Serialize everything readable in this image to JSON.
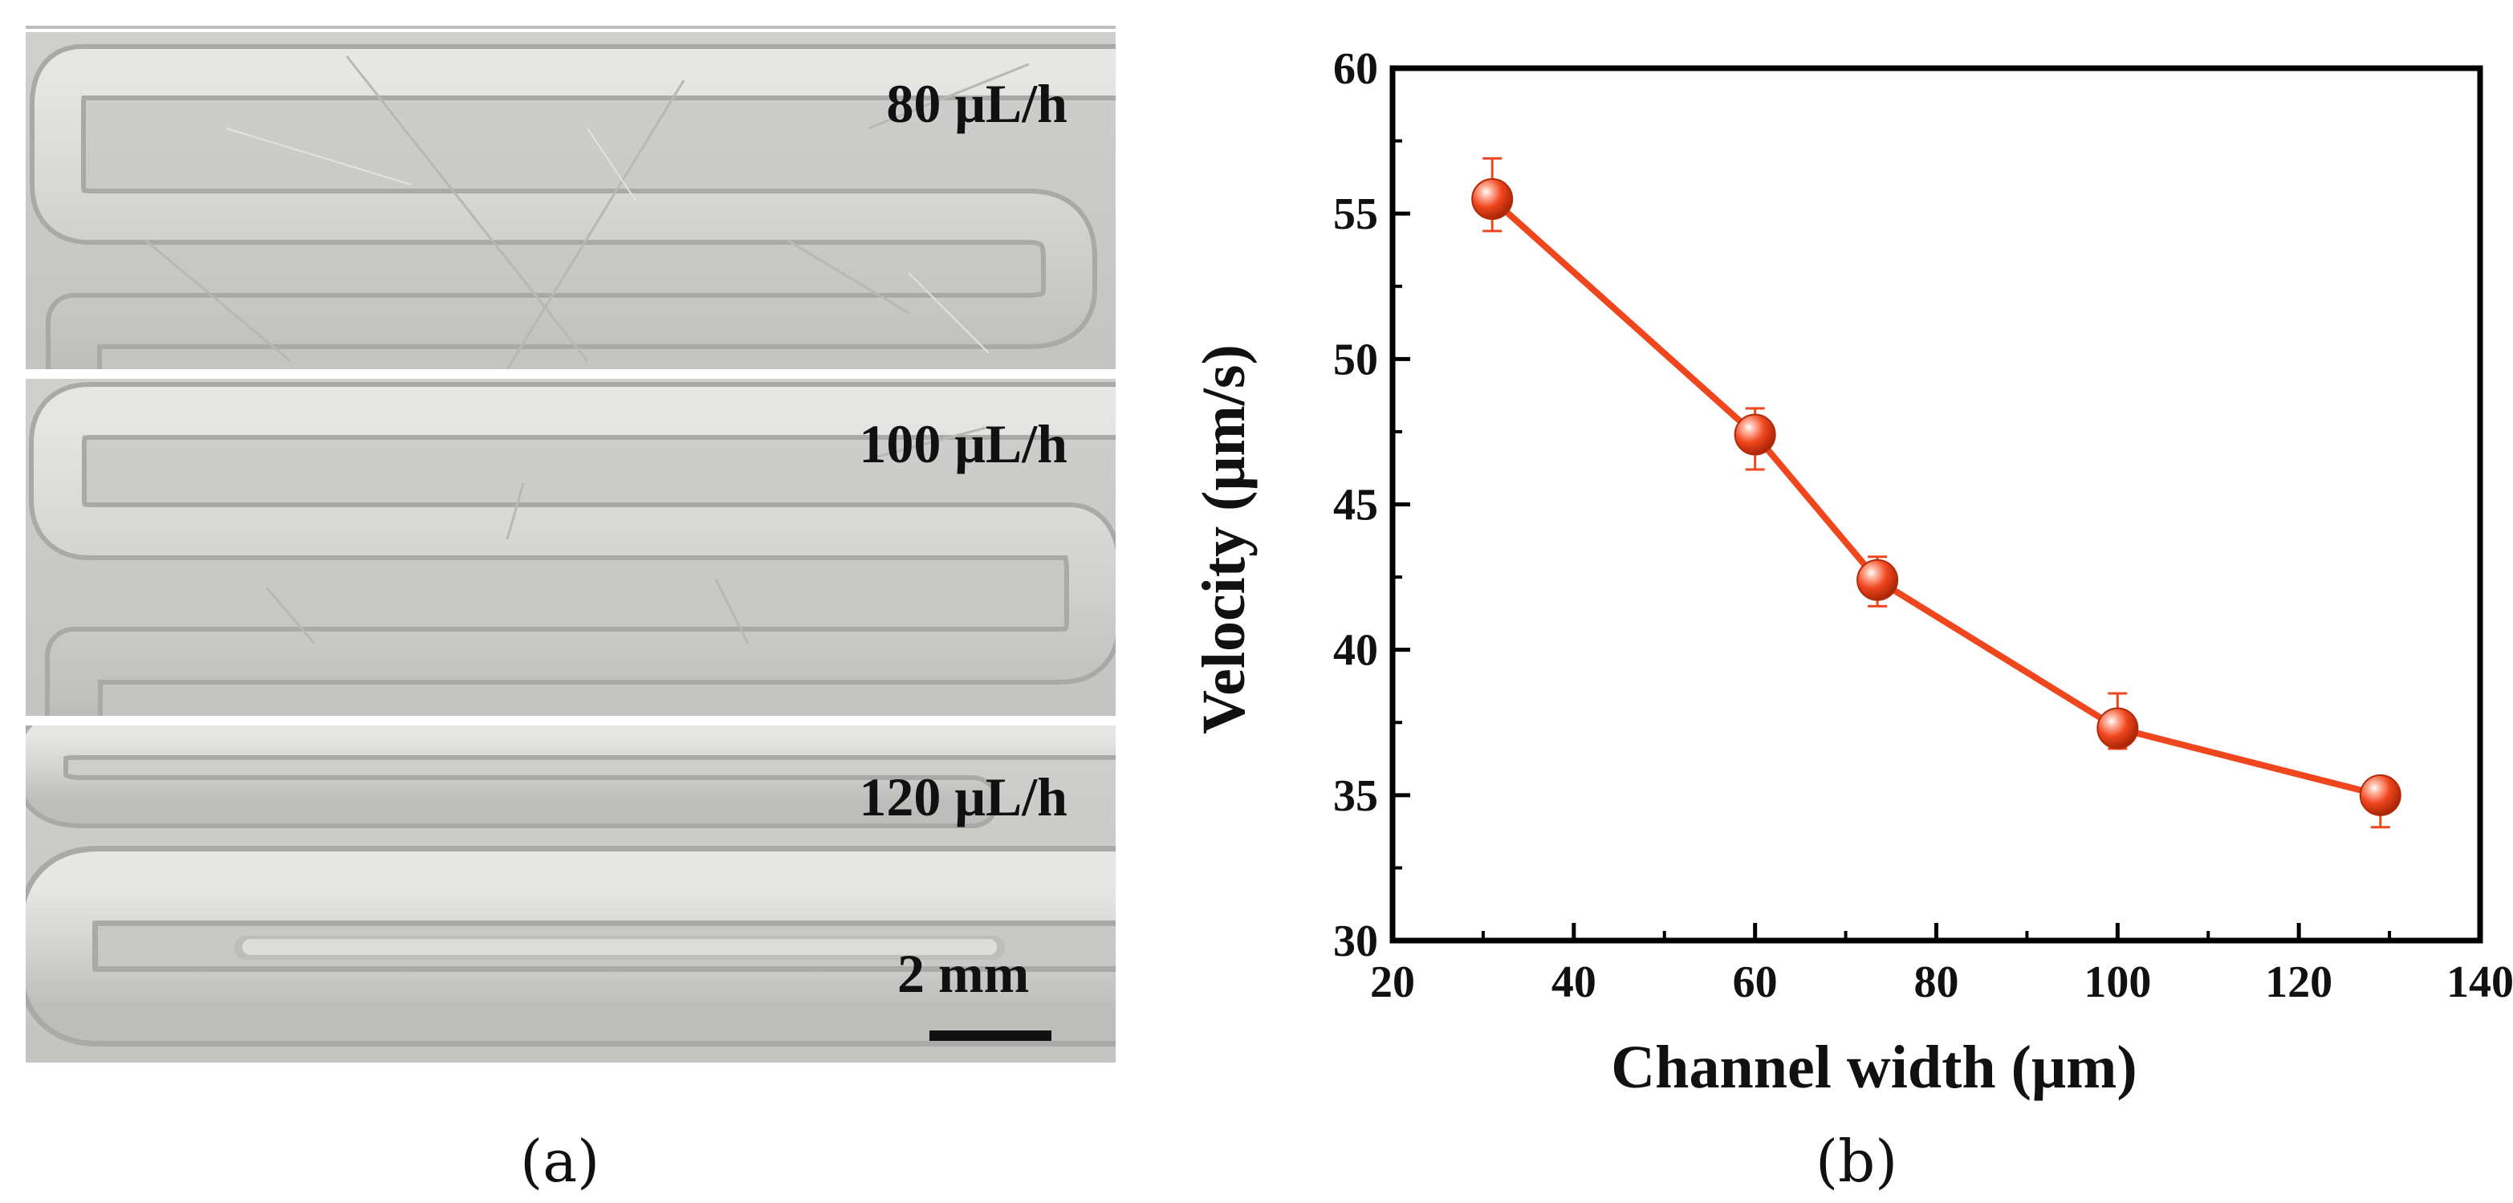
{
  "figure": {
    "panel_a": {
      "tag": "(a)",
      "images": [
        {
          "label": "80 μL/h"
        },
        {
          "label": "100 μL/h"
        },
        {
          "label": "120 μL/h"
        }
      ],
      "scale_bar_label": "2 mm"
    },
    "panel_b": {
      "tag": "(b)"
    }
  },
  "chart_data": {
    "type": "scatter",
    "title": "",
    "xlabel": "Channel width (μm)",
    "ylabel": "Velocity (μm/s)",
    "xlim": [
      20,
      140
    ],
    "ylim": [
      30,
      60
    ],
    "xticks": [
      20,
      40,
      60,
      80,
      100,
      120,
      140
    ],
    "yticks": [
      30,
      35,
      40,
      45,
      50,
      55,
      60
    ],
    "grid": false,
    "legend": "none",
    "connected": true,
    "color": "#f0461e",
    "series": [
      {
        "x": [
          31,
          60,
          73.5,
          100,
          129
        ],
        "y": [
          55.5,
          47.4,
          42.4,
          37.3,
          35.0
        ],
        "err_up": [
          1.4,
          0.9,
          0.8,
          1.2,
          0.6
        ],
        "err_down": [
          1.1,
          1.2,
          0.9,
          0.7,
          1.1
        ]
      }
    ]
  }
}
